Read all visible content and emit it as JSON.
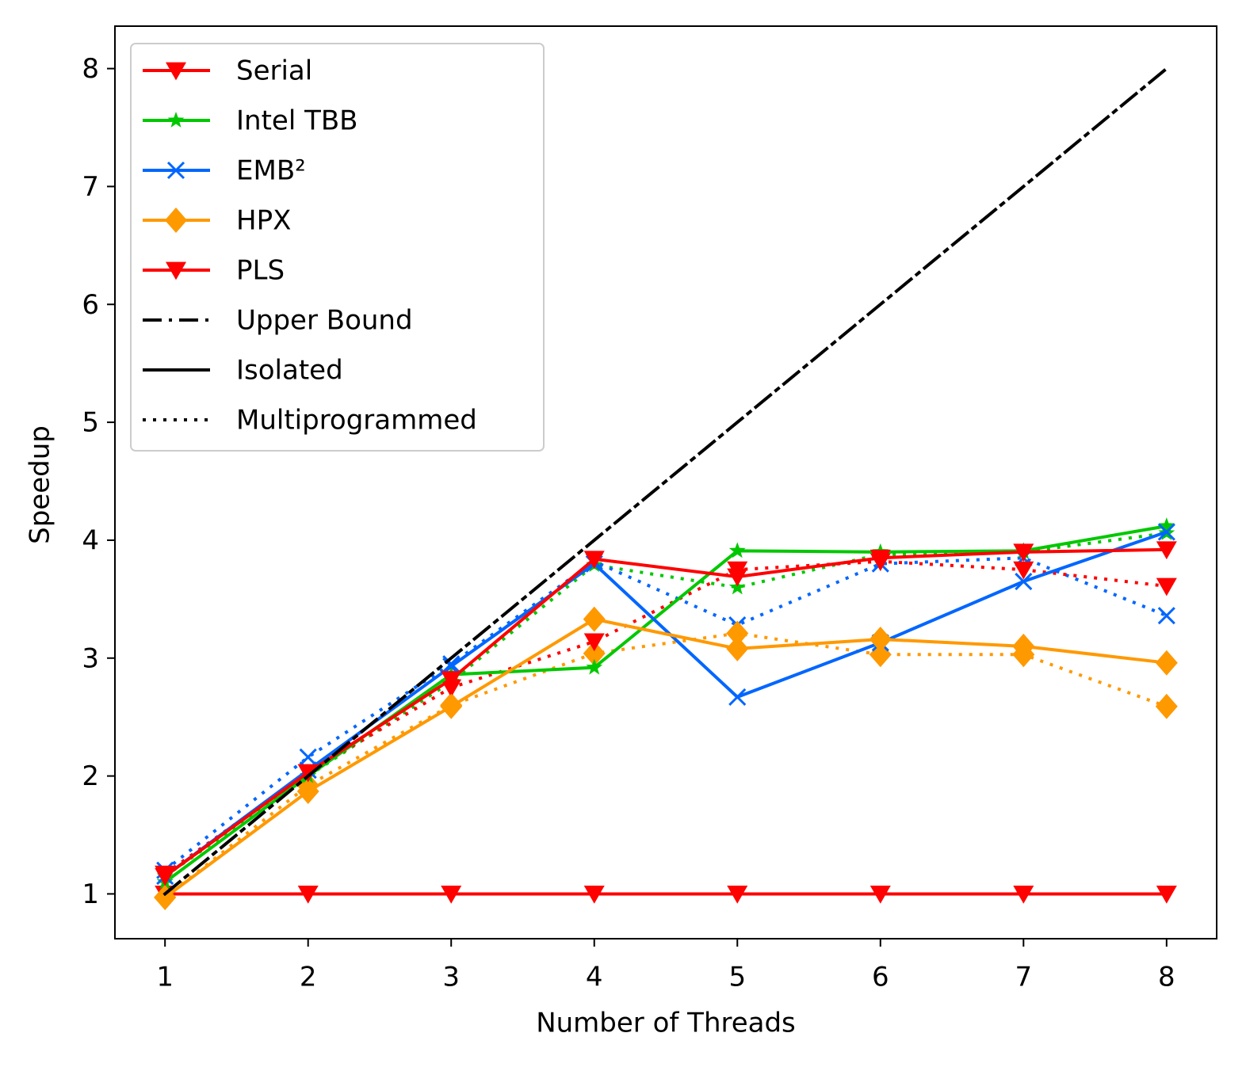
{
  "chart_data": {
    "type": "line",
    "xlabel": "Number of Threads",
    "ylabel": "Speedup",
    "x": [
      1,
      2,
      3,
      4,
      5,
      6,
      7,
      8
    ],
    "xlim": [
      0.65,
      8.35
    ],
    "xticks": [
      1,
      2,
      3,
      4,
      5,
      6,
      7,
      8
    ],
    "ylim": [
      0.62,
      8.36
    ],
    "yticks": [
      1,
      2,
      3,
      4,
      5,
      6,
      7,
      8
    ],
    "legend": "upper left",
    "series": [
      {
        "name": "Serial",
        "color": "#ff0000",
        "marker": "triangle_down",
        "values": [
          1,
          1,
          1,
          1,
          1,
          1,
          1,
          1
        ]
      },
      {
        "name": "Intel TBB",
        "color": "#00c800",
        "marker": "star",
        "values": [
          1.1,
          2.0,
          2.86,
          2.92,
          3.91,
          3.9,
          3.91,
          4.12
        ],
        "multiprogrammed": [
          1.15,
          2.0,
          2.8,
          3.79,
          3.6,
          3.88,
          3.9,
          4.06
        ]
      },
      {
        "name": "EMB²",
        "color": "#0066ff",
        "marker": "x",
        "values": [
          1.15,
          2.05,
          2.93,
          3.8,
          2.67,
          3.13,
          3.65,
          4.07
        ],
        "multiprogrammed": [
          1.2,
          2.16,
          2.95,
          3.82,
          3.28,
          3.8,
          3.85,
          3.36
        ]
      },
      {
        "name": "HPX",
        "color": "#ff9900",
        "marker": "diamond",
        "values": [
          0.97,
          1.87,
          2.59,
          3.33,
          3.08,
          3.16,
          3.1,
          2.96
        ],
        "multiprogrammed": [
          0.97,
          1.92,
          2.6,
          3.04,
          3.21,
          3.03,
          3.03,
          2.59
        ]
      },
      {
        "name": "PLS",
        "color": "#ff0000",
        "marker": "triangle_down",
        "values": [
          1.15,
          2.03,
          2.82,
          3.84,
          3.69,
          3.85,
          3.9,
          3.92
        ],
        "multiprogrammed": [
          1.17,
          2.03,
          2.75,
          3.14,
          3.75,
          3.82,
          3.75,
          3.61
        ]
      },
      {
        "name": "Upper Bound",
        "color": "#000000",
        "dash": "dashdot",
        "values": [
          1,
          2,
          3,
          4,
          5,
          6,
          7,
          8
        ]
      }
    ],
    "line_styles": [
      {
        "name": "Isolated",
        "dash": "solid"
      },
      {
        "name": "Multiprogrammed",
        "dash": "dotted"
      }
    ]
  }
}
